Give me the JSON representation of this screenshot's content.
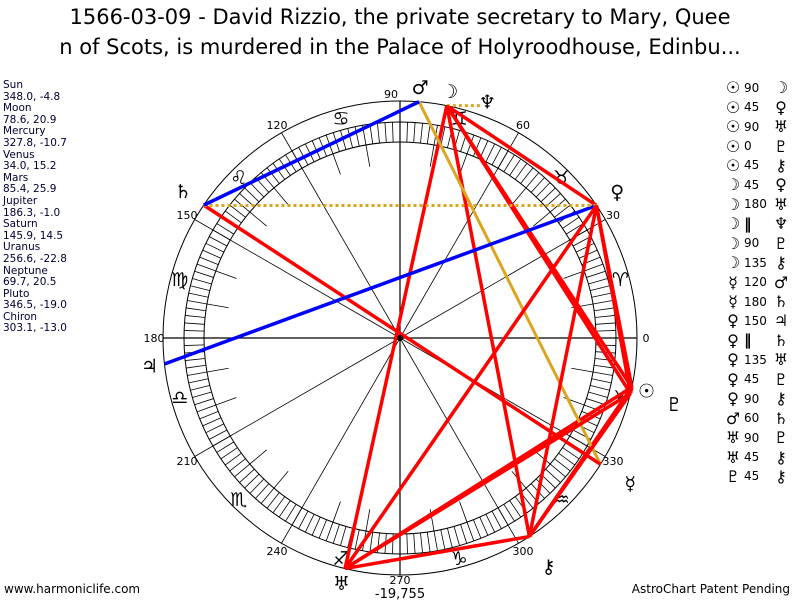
{
  "title": "1566-03-09 - David Rizzio, the private secretary to Mary, Queen of Scots, is murdered in the Palace of Holyroodhouse, Edinbu...",
  "title_line1": "1566-03-09 - David Rizzio, the private secretary to Mary, Quee",
  "title_line2": "n of Scots, is murdered in the Palace of Holyroodhouse, Edinbu...",
  "planets": [
    {
      "name": "Sun",
      "glyph": "☉",
      "lon": 348.0,
      "dec": -4.8,
      "coords": "348.0, -4.8"
    },
    {
      "name": "Moon",
      "glyph": "☽",
      "lon": 78.6,
      "dec": 20.9,
      "coords": "78.6, 20.9"
    },
    {
      "name": "Mercury",
      "glyph": "☿",
      "lon": 327.8,
      "dec": -10.7,
      "coords": "327.8, -10.7"
    },
    {
      "name": "Venus",
      "glyph": "♀",
      "lon": 34.0,
      "dec": 15.2,
      "coords": "34.0, 15.2"
    },
    {
      "name": "Mars",
      "glyph": "♂",
      "lon": 85.4,
      "dec": 25.9,
      "coords": "85.4, 25.9"
    },
    {
      "name": "Jupiter",
      "glyph": "♃",
      "lon": 186.3,
      "dec": -1.0,
      "coords": "186.3, -1.0"
    },
    {
      "name": "Saturn",
      "glyph": "♄",
      "lon": 145.9,
      "dec": 14.5,
      "coords": "145.9, 14.5"
    },
    {
      "name": "Uranus",
      "glyph": "♅",
      "lon": 256.6,
      "dec": -22.8,
      "coords": "256.6, -22.8"
    },
    {
      "name": "Neptune",
      "glyph": "♆",
      "lon": 69.7,
      "dec": 20.5,
      "coords": "69.7, 20.5"
    },
    {
      "name": "Pluto",
      "glyph": "♇",
      "lon": 346.5,
      "dec": -19.0,
      "coords": "346.5, -19.0"
    },
    {
      "name": "Chiron",
      "glyph": "⚷",
      "lon": 303.1,
      "dec": -13.0,
      "coords": "303.1, -13.0"
    }
  ],
  "aspects": [
    {
      "p1": "Sun",
      "angle": "90",
      "p2": "Moon"
    },
    {
      "p1": "Sun",
      "angle": "45",
      "p2": "Venus"
    },
    {
      "p1": "Sun",
      "angle": "90",
      "p2": "Uranus"
    },
    {
      "p1": "Sun",
      "angle": "0",
      "p2": "Pluto"
    },
    {
      "p1": "Sun",
      "angle": "45",
      "p2": "Chiron"
    },
    {
      "p1": "Moon",
      "angle": "45",
      "p2": "Venus"
    },
    {
      "p1": "Moon",
      "angle": "180",
      "p2": "Uranus"
    },
    {
      "p1": "Moon",
      "angle": "‖",
      "p2": "Neptune"
    },
    {
      "p1": "Moon",
      "angle": "90",
      "p2": "Pluto"
    },
    {
      "p1": "Moon",
      "angle": "135",
      "p2": "Chiron"
    },
    {
      "p1": "Mercury",
      "angle": "120",
      "p2": "Mars"
    },
    {
      "p1": "Mercury",
      "angle": "180",
      "p2": "Saturn"
    },
    {
      "p1": "Venus",
      "angle": "150",
      "p2": "Jupiter"
    },
    {
      "p1": "Venus",
      "angle": "‖",
      "p2": "Saturn"
    },
    {
      "p1": "Venus",
      "angle": "135",
      "p2": "Uranus"
    },
    {
      "p1": "Venus",
      "angle": "45",
      "p2": "Pluto"
    },
    {
      "p1": "Venus",
      "angle": "90",
      "p2": "Chiron"
    },
    {
      "p1": "Mars",
      "angle": "60",
      "p2": "Saturn"
    },
    {
      "p1": "Uranus",
      "angle": "90",
      "p2": "Pluto"
    },
    {
      "p1": "Uranus",
      "angle": "45",
      "p2": "Chiron"
    },
    {
      "p1": "Pluto",
      "angle": "45",
      "p2": "Chiron"
    }
  ],
  "signs": [
    "♈",
    "♉",
    "♊",
    "♋",
    "♌",
    "♍",
    "♎",
    "♏",
    "♐",
    "♑",
    "♒",
    "♓"
  ],
  "degree_labels": [
    "0",
    "30",
    "60",
    "90",
    "120",
    "150",
    "180",
    "210",
    "240",
    "270",
    "300",
    "330"
  ],
  "chart_value": "-19,755",
  "colors": {
    "hard": "#ff0000",
    "soft": "#0000ff",
    "trine": "#daa520",
    "parallel": "#daa520"
  },
  "footer": {
    "left": "www.harmoniclife.com",
    "right": "AstroChart Patent Pending"
  }
}
